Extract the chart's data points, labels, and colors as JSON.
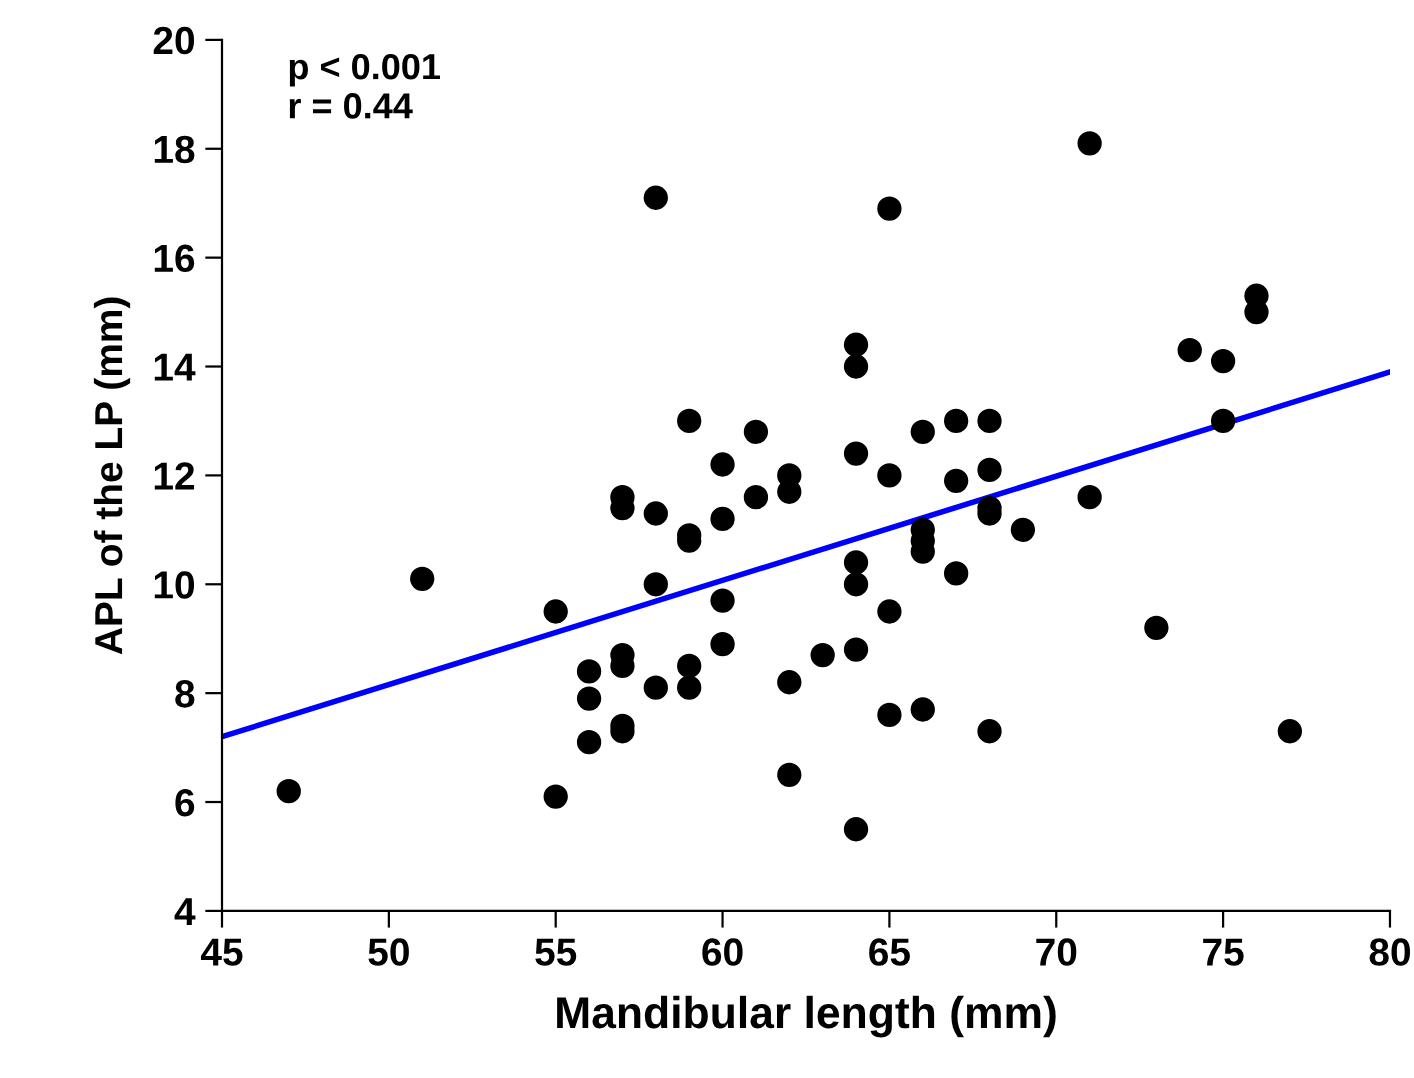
{
  "chart_data": {
    "type": "scatter",
    "xlabel": "Mandibular length (mm)",
    "ylabel": "APL of the LP (mm)",
    "annotations": [
      "p < 0.001",
      "r = 0.44"
    ],
    "series": [
      {
        "color": "#000000",
        "marker": "circle",
        "x": [
          47,
          51,
          55,
          55,
          56,
          56,
          56,
          57,
          57,
          57,
          57,
          57,
          57,
          58,
          58,
          58,
          58,
          59,
          59,
          59,
          59,
          59,
          60,
          60,
          60,
          60,
          61,
          61,
          62,
          62,
          62,
          62,
          63,
          64,
          64,
          64,
          64,
          64,
          64,
          64,
          65,
          65,
          65,
          65,
          66,
          66,
          66,
          66,
          66,
          67,
          67,
          67,
          68,
          68,
          68,
          68,
          68,
          69,
          71,
          71,
          73,
          74,
          75,
          75,
          76,
          76,
          77
        ],
        "values": [
          6.2,
          10.1,
          9.5,
          6.1,
          8.4,
          7.9,
          7.1,
          11.6,
          11.4,
          8.7,
          8.5,
          7.4,
          7.3,
          17.1,
          11.3,
          10.0,
          8.1,
          13.0,
          10.9,
          10.8,
          8.5,
          8.1,
          12.2,
          11.2,
          9.7,
          8.9,
          12.8,
          11.6,
          12.0,
          11.7,
          8.2,
          6.5,
          8.7,
          14.4,
          14.0,
          12.4,
          10.4,
          10.0,
          8.8,
          5.5,
          16.9,
          12.0,
          9.5,
          7.6,
          12.8,
          11.0,
          10.8,
          10.6,
          7.7,
          13.0,
          11.9,
          10.2,
          13.0,
          12.1,
          11.4,
          11.3,
          7.3,
          11.0,
          18.1,
          11.6,
          9.2,
          14.3,
          14.1,
          13.0,
          15.3,
          15.0,
          7.3
        ]
      },
      {
        "type": "line",
        "color": "#0000ff",
        "x": [
          45,
          80
        ],
        "values": [
          7.2,
          13.9
        ]
      }
    ],
    "xlim": [
      45,
      80
    ],
    "xticks": [
      45,
      50,
      55,
      60,
      65,
      70,
      75,
      80
    ],
    "ylim": [
      4,
      20
    ],
    "yticks": [
      4,
      6,
      8,
      10,
      12,
      14,
      16,
      18,
      20
    ],
    "grid": false,
    "legend": false
  }
}
